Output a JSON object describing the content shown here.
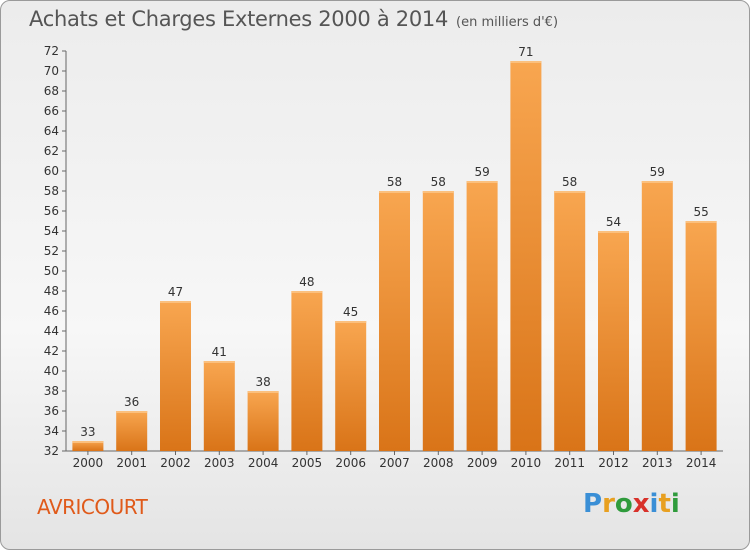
{
  "header": {
    "title": "Achats et Charges Externes 2000 à 2014",
    "subtitle": "(en milliers d'€)"
  },
  "footer": {
    "commune": "AVRICOURT",
    "logo": "Proxiti"
  },
  "colors": {
    "bar_light": "#f8a650",
    "bar_dark": "#d97418",
    "commune_text": "#e05a1a"
  },
  "chart_data": {
    "type": "bar",
    "categories": [
      "2000",
      "2001",
      "2002",
      "2003",
      "2004",
      "2005",
      "2006",
      "2007",
      "2008",
      "2009",
      "2010",
      "2011",
      "2012",
      "2013",
      "2014"
    ],
    "values": [
      33,
      36,
      47,
      41,
      38,
      48,
      45,
      58,
      58,
      59,
      71,
      58,
      54,
      59,
      55
    ],
    "title": "Achats et Charges Externes 2000 à 2014",
    "ylim": [
      32,
      72
    ],
    "yticks": [
      32,
      34,
      36,
      38,
      40,
      42,
      44,
      46,
      48,
      50,
      52,
      54,
      56,
      58,
      60,
      62,
      64,
      66,
      68,
      70,
      72
    ],
    "grid": false,
    "data_labels": true
  }
}
